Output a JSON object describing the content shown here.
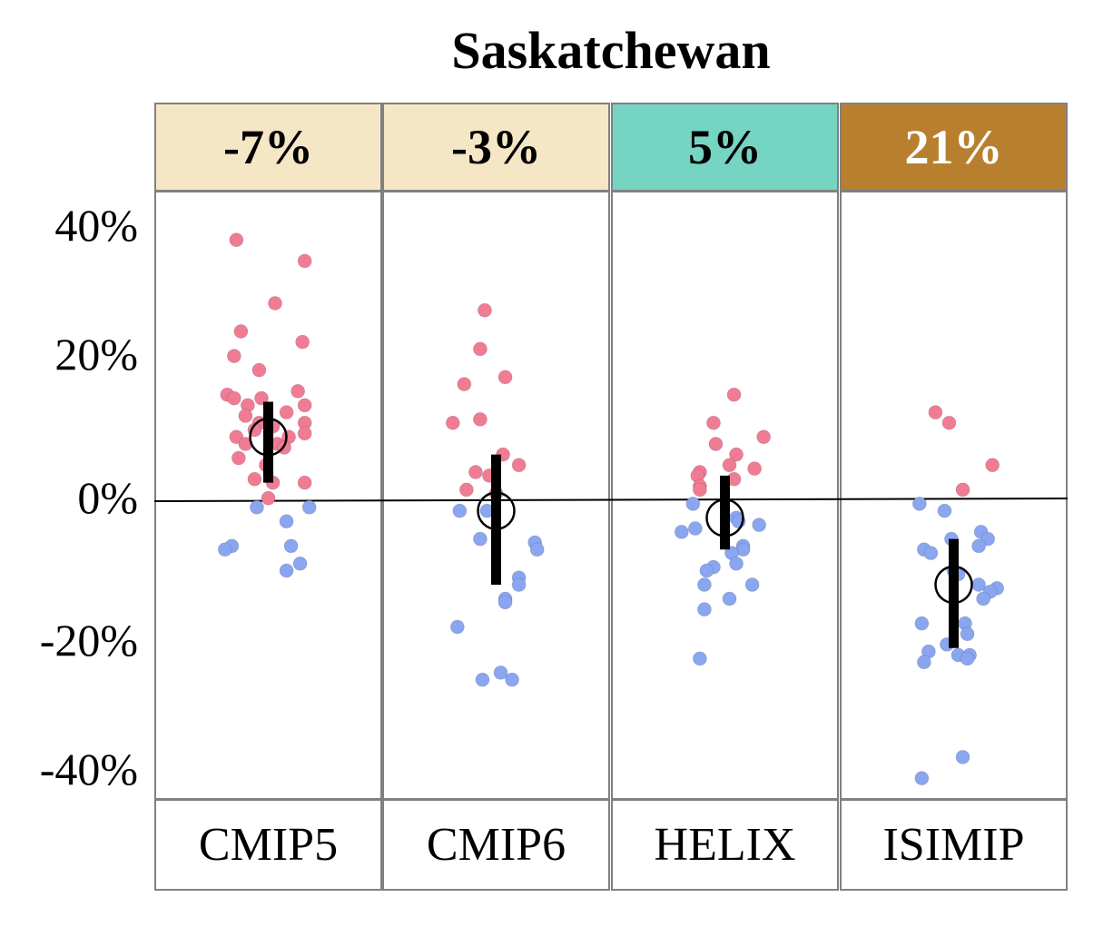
{
  "chart_data": {
    "type": "scatter",
    "title": "Saskatchewan",
    "ylabel": "",
    "xlabel": "",
    "ylim": [
      -42,
      44
    ],
    "yticks": [
      40,
      20,
      0,
      -20,
      -40
    ],
    "ytick_labels": [
      "40%",
      "20%",
      "0%",
      "-20%",
      "-40%"
    ],
    "colors": {
      "positive": "#f07c94",
      "negative": "#8aa6f0",
      "marker": "#000000"
    },
    "panels": [
      {
        "name": "CMIP5",
        "header_value": "-7%",
        "header_bg": "#f5e7c6",
        "header_color": "#000000",
        "mean": 9,
        "range": [
          2.5,
          14
        ],
        "points": [
          [
            0.36,
            37
          ],
          [
            0.66,
            34
          ],
          [
            0.53,
            28
          ],
          [
            0.38,
            24
          ],
          [
            0.35,
            20.5
          ],
          [
            0.65,
            22.5
          ],
          [
            0.46,
            18.5
          ],
          [
            0.32,
            15
          ],
          [
            0.35,
            14.5
          ],
          [
            0.47,
            14.5
          ],
          [
            0.41,
            13.5
          ],
          [
            0.63,
            15.5
          ],
          [
            0.66,
            13.5
          ],
          [
            0.58,
            12.5
          ],
          [
            0.4,
            12
          ],
          [
            0.46,
            11
          ],
          [
            0.66,
            11
          ],
          [
            0.52,
            10.5
          ],
          [
            0.44,
            10
          ],
          [
            0.66,
            9.5
          ],
          [
            0.36,
            9
          ],
          [
            0.54,
            8
          ],
          [
            0.59,
            9
          ],
          [
            0.4,
            8
          ],
          [
            0.57,
            7.5
          ],
          [
            0.37,
            6
          ],
          [
            0.49,
            5
          ],
          [
            0.44,
            3
          ],
          [
            0.52,
            2.5
          ],
          [
            0.66,
            2.5
          ],
          [
            0.5,
            0.3
          ],
          [
            0.45,
            -1
          ],
          [
            0.58,
            -3
          ],
          [
            0.68,
            -1
          ],
          [
            0.34,
            -6.5
          ],
          [
            0.31,
            -7
          ],
          [
            0.6,
            -6.5
          ],
          [
            0.64,
            -9
          ],
          [
            0.58,
            -10
          ]
        ]
      },
      {
        "name": "CMIP6",
        "header_value": "-3%",
        "header_bg": "#f5e7c6",
        "header_color": "#000000",
        "mean": -1.5,
        "range": [
          -12,
          6.5
        ],
        "points": [
          [
            0.45,
            27
          ],
          [
            0.43,
            21.5
          ],
          [
            0.36,
            16.5
          ],
          [
            0.54,
            17.5
          ],
          [
            0.31,
            11
          ],
          [
            0.43,
            11.5
          ],
          [
            0.53,
            6.5
          ],
          [
            0.6,
            5
          ],
          [
            0.41,
            4
          ],
          [
            0.47,
            3.5
          ],
          [
            0.37,
            1.5
          ],
          [
            0.5,
            1
          ],
          [
            0.34,
            -1.5
          ],
          [
            0.46,
            -1.5
          ],
          [
            0.43,
            -5.5
          ],
          [
            0.67,
            -6
          ],
          [
            0.68,
            -7
          ],
          [
            0.6,
            -11
          ],
          [
            0.6,
            -12
          ],
          [
            0.54,
            -14
          ],
          [
            0.54,
            -14.5
          ],
          [
            0.33,
            -18
          ],
          [
            0.44,
            -25.5
          ],
          [
            0.52,
            -24.5
          ],
          [
            0.57,
            -25.5
          ]
        ]
      },
      {
        "name": "HELIX",
        "header_value": "5%",
        "header_bg": "#76d4c2",
        "header_color": "#000000",
        "mean": -2.5,
        "range": [
          -7,
          3.5
        ],
        "points": [
          [
            0.54,
            15
          ],
          [
            0.45,
            11
          ],
          [
            0.67,
            9
          ],
          [
            0.46,
            8
          ],
          [
            0.55,
            6.5
          ],
          [
            0.52,
            5
          ],
          [
            0.63,
            4.5
          ],
          [
            0.39,
            4
          ],
          [
            0.38,
            3.5
          ],
          [
            0.54,
            3
          ],
          [
            0.39,
            2
          ],
          [
            0.39,
            1.5
          ],
          [
            0.36,
            -0.5
          ],
          [
            0.55,
            -2.5
          ],
          [
            0.56,
            -3
          ],
          [
            0.65,
            -3.5
          ],
          [
            0.37,
            -4
          ],
          [
            0.31,
            -4.5
          ],
          [
            0.58,
            -6.5
          ],
          [
            0.58,
            -7
          ],
          [
            0.53,
            -7.5
          ],
          [
            0.55,
            -9
          ],
          [
            0.45,
            -9.5
          ],
          [
            0.42,
            -10
          ],
          [
            0.41,
            -12
          ],
          [
            0.62,
            -12
          ],
          [
            0.52,
            -14
          ],
          [
            0.41,
            -15.5
          ],
          [
            0.39,
            -22.5
          ]
        ]
      },
      {
        "name": "ISIMIP",
        "header_value": "21%",
        "header_bg": "#b8802e",
        "header_color": "#ffffff",
        "mean": -12,
        "range": [
          -21,
          -5.5
        ],
        "points": [
          [
            0.42,
            12.5
          ],
          [
            0.48,
            11
          ],
          [
            0.67,
            5
          ],
          [
            0.54,
            1.5
          ],
          [
            0.35,
            -0.5
          ],
          [
            0.46,
            -1.5
          ],
          [
            0.49,
            -5.5
          ],
          [
            0.62,
            -4.5
          ],
          [
            0.65,
            -5.5
          ],
          [
            0.61,
            -6.5
          ],
          [
            0.37,
            -7
          ],
          [
            0.4,
            -7.5
          ],
          [
            0.5,
            -10
          ],
          [
            0.52,
            -10.5
          ],
          [
            0.61,
            -12
          ],
          [
            0.69,
            -12.5
          ],
          [
            0.66,
            -13
          ],
          [
            0.63,
            -14
          ],
          [
            0.36,
            -17.5
          ],
          [
            0.55,
            -17.5
          ],
          [
            0.56,
            -19
          ],
          [
            0.47,
            -20.5
          ],
          [
            0.39,
            -21.5
          ],
          [
            0.52,
            -22
          ],
          [
            0.57,
            -22
          ],
          [
            0.37,
            -23
          ],
          [
            0.56,
            -22.5
          ],
          [
            0.54,
            -36.5
          ],
          [
            0.36,
            -39.5
          ]
        ]
      }
    ]
  }
}
